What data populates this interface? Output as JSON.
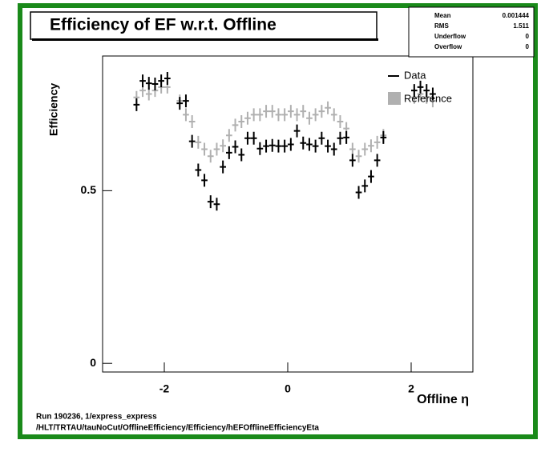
{
  "chart_data": {
    "type": "scatter",
    "title": "Efficiency of EF w.r.t. Offline",
    "x_label": "Offline η",
    "y_label": "Efficiency",
    "xlim": [
      -3,
      3
    ],
    "ylim": [
      -0.025,
      0.89
    ],
    "xticks": [
      -2,
      0,
      2
    ],
    "yticks": [
      0,
      0.5
    ],
    "x": [
      -2.45,
      -2.35,
      -2.25,
      -2.15,
      -2.05,
      -1.95,
      -1.75,
      -1.65,
      -1.55,
      -1.45,
      -1.35,
      -1.25,
      -1.15,
      -1.05,
      -0.95,
      -0.85,
      -0.75,
      -0.65,
      -0.55,
      -0.45,
      -0.35,
      -0.25,
      -0.15,
      -0.05,
      0.05,
      0.15,
      0.25,
      0.35,
      0.45,
      0.55,
      0.65,
      0.75,
      0.85,
      0.95,
      1.05,
      1.15,
      1.25,
      1.35,
      1.45,
      1.55,
      2.05,
      2.15,
      2.25,
      2.35
    ],
    "series": [
      {
        "name": "Reference",
        "color": "#b0b0b0",
        "values": [
          0.77,
          0.79,
          0.78,
          0.79,
          0.8,
          0.8,
          0.76,
          0.72,
          0.7,
          0.64,
          0.62,
          0.6,
          0.62,
          0.63,
          0.66,
          0.69,
          0.7,
          0.71,
          0.72,
          0.72,
          0.73,
          0.73,
          0.72,
          0.72,
          0.73,
          0.72,
          0.73,
          0.71,
          0.72,
          0.73,
          0.74,
          0.72,
          0.7,
          0.68,
          0.62,
          0.6,
          0.62,
          0.63,
          0.64,
          0.66,
          0.77,
          0.78,
          0.77,
          0.76
        ]
      },
      {
        "name": "Data",
        "color": "#000000",
        "values": [
          0.749,
          0.818,
          0.811,
          0.809,
          0.818,
          0.825,
          0.753,
          0.76,
          0.643,
          0.56,
          0.53,
          0.468,
          0.461,
          0.569,
          0.61,
          0.627,
          0.604,
          0.652,
          0.652,
          0.622,
          0.629,
          0.631,
          0.629,
          0.629,
          0.634,
          0.673,
          0.638,
          0.634,
          0.629,
          0.652,
          0.629,
          0.62,
          0.652,
          0.654,
          0.588,
          0.495,
          0.514,
          0.541,
          0.588,
          0.654,
          0.79,
          0.8,
          0.79,
          0.78
        ]
      }
    ],
    "stats": [
      {
        "label": "Mean",
        "value": 0.001444
      },
      {
        "label": "RMS",
        "value": 1.511
      },
      {
        "label": "Underflow",
        "value": 0
      },
      {
        "label": "Overflow",
        "value": 0
      }
    ],
    "footer": [
      "Run 190236, 1/express_express",
      "/HLT/TRTAU/tauNoCut/OfflineEfficiency/Efficiency/hEFOfflineEfficiencyEta"
    ]
  }
}
